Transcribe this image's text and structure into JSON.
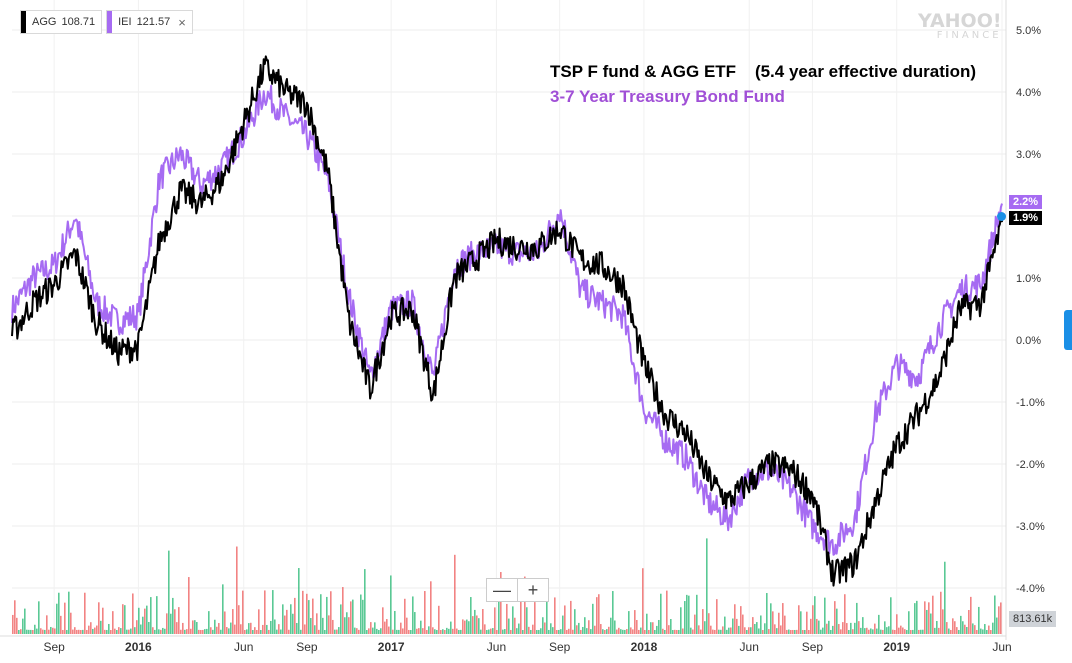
{
  "legend": [
    {
      "ticker": "AGG",
      "value": "108.71",
      "color": "#000000"
    },
    {
      "ticker": "IEI",
      "value": "121.57",
      "color": "#a66bf2"
    }
  ],
  "legend_close": "×",
  "brand": {
    "line1": "YAHOO!",
    "line2": "FINANCE"
  },
  "zoom": {
    "minus": "—",
    "plus": "+"
  },
  "end_labels": {
    "iei": "2.2%",
    "agg": "1.9%",
    "volume": "813.61k"
  },
  "chart_data": {
    "type": "line",
    "title": "TSP F fund & AGG ETF    (5.4 year effective duration)",
    "subtitle": "3-7 Year Treasury Bond Fund",
    "x_tick_labels": [
      "Sep",
      "2016",
      "Jun",
      "Sep",
      "2017",
      "Jun",
      "Sep",
      "2018",
      "Jun",
      "Sep",
      "2019",
      "Jun"
    ],
    "y_tick_labels": [
      "5.0%",
      "4.0%",
      "3.0%",
      "2.0%",
      "1.0%",
      "0.0%",
      "-1.0%",
      "-2.0%",
      "-3.0%",
      "-4.0%"
    ],
    "ylim": [
      -4.4,
      5.3
    ],
    "x_range": [
      "2015-07",
      "2019-06"
    ],
    "grid": true,
    "legend_position": "top-left",
    "series": [
      {
        "name": "AGG",
        "color": "#000000",
        "x": [
          "2015-07",
          "2015-08",
          "2015-09",
          "2015-10",
          "2015-11",
          "2015-12",
          "2016-01",
          "2016-02",
          "2016-03",
          "2016-04",
          "2016-05",
          "2016-06",
          "2016-07",
          "2016-08",
          "2016-09",
          "2016-10",
          "2016-11",
          "2016-12",
          "2017-01",
          "2017-02",
          "2017-03",
          "2017-04",
          "2017-05",
          "2017-06",
          "2017-07",
          "2017-08",
          "2017-09",
          "2017-10",
          "2017-11",
          "2017-12",
          "2018-01",
          "2018-02",
          "2018-03",
          "2018-04",
          "2018-05",
          "2018-06",
          "2018-07",
          "2018-08",
          "2018-09",
          "2018-10",
          "2018-11",
          "2018-12",
          "2019-01",
          "2019-02",
          "2019-03",
          "2019-04",
          "2019-05",
          "2019-06"
        ],
        "values": [
          0.1,
          0.6,
          0.9,
          1.4,
          0.3,
          -0.2,
          -0.1,
          1.6,
          2.4,
          2.2,
          2.6,
          3.5,
          4.4,
          4.0,
          3.8,
          2.7,
          0.3,
          -0.8,
          0.4,
          0.5,
          -0.9,
          1.0,
          1.3,
          1.6,
          1.5,
          1.5,
          1.8,
          1.3,
          1.2,
          0.9,
          -0.4,
          -1.2,
          -1.5,
          -2.2,
          -2.6,
          -2.3,
          -2.0,
          -2.1,
          -2.5,
          -3.8,
          -3.6,
          -2.6,
          -1.7,
          -1.2,
          -0.6,
          0.5,
          0.6,
          1.9
        ]
      },
      {
        "name": "IEI",
        "color": "#a66bf2",
        "x": [
          "2015-07",
          "2015-08",
          "2015-09",
          "2015-10",
          "2015-11",
          "2015-12",
          "2016-01",
          "2016-02",
          "2016-03",
          "2016-04",
          "2016-05",
          "2016-06",
          "2016-07",
          "2016-08",
          "2016-09",
          "2016-10",
          "2016-11",
          "2016-12",
          "2017-01",
          "2017-02",
          "2017-03",
          "2017-04",
          "2017-05",
          "2017-06",
          "2017-07",
          "2017-08",
          "2017-09",
          "2017-10",
          "2017-11",
          "2017-12",
          "2018-01",
          "2018-02",
          "2018-03",
          "2018-04",
          "2018-05",
          "2018-06",
          "2018-07",
          "2018-08",
          "2018-09",
          "2018-10",
          "2018-11",
          "2018-12",
          "2019-01",
          "2019-02",
          "2019-03",
          "2019-04",
          "2019-05",
          "2019-06"
        ],
        "values": [
          0.5,
          1.0,
          1.2,
          2.0,
          0.6,
          0.3,
          0.4,
          2.6,
          3.0,
          2.5,
          2.8,
          3.3,
          4.0,
          3.6,
          3.3,
          2.6,
          0.7,
          -0.6,
          0.5,
          0.6,
          -0.6,
          1.2,
          1.4,
          1.5,
          1.4,
          1.4,
          2.1,
          0.8,
          0.6,
          0.4,
          -1.1,
          -1.6,
          -1.9,
          -2.6,
          -2.9,
          -2.2,
          -2.1,
          -2.4,
          -3.0,
          -3.3,
          -2.9,
          -1.2,
          -0.4,
          -0.6,
          0.2,
          0.8,
          0.9,
          2.2
        ]
      }
    ],
    "volume": {
      "unit": "shares",
      "last": 813610
    }
  }
}
